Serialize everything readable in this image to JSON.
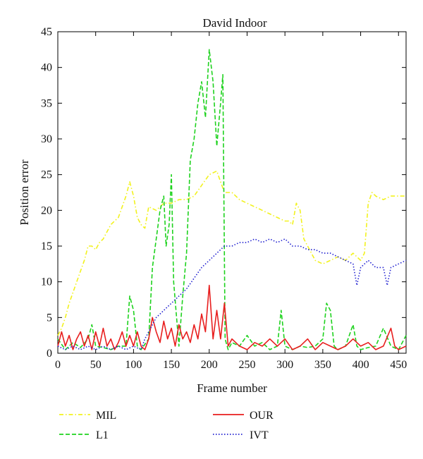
{
  "chart_data": {
    "type": "line",
    "title": "David Indoor",
    "xlabel": "Frame number",
    "ylabel": "Position error",
    "xlim": [
      0,
      460
    ],
    "ylim": [
      0,
      45
    ],
    "xticks": [
      0,
      50,
      100,
      150,
      200,
      250,
      300,
      350,
      400,
      450
    ],
    "yticks": [
      0,
      5,
      10,
      15,
      20,
      25,
      30,
      35,
      40,
      45
    ],
    "grid": false,
    "legend_position": "below-plot",
    "series": [
      {
        "name": "MIL",
        "color": "#f2f21e",
        "style": "dashdot",
        "points": [
          [
            0,
            2.5
          ],
          [
            5,
            3.5
          ],
          [
            10,
            5
          ],
          [
            15,
            7
          ],
          [
            20,
            8.5
          ],
          [
            25,
            10
          ],
          [
            30,
            11.5
          ],
          [
            35,
            13
          ],
          [
            40,
            15
          ],
          [
            45,
            15
          ],
          [
            50,
            14.5
          ],
          [
            55,
            15.5
          ],
          [
            60,
            16
          ],
          [
            65,
            17
          ],
          [
            70,
            18
          ],
          [
            75,
            18.5
          ],
          [
            80,
            19
          ],
          [
            85,
            20.5
          ],
          [
            90,
            22
          ],
          [
            95,
            24
          ],
          [
            100,
            22
          ],
          [
            105,
            19
          ],
          [
            110,
            18
          ],
          [
            115,
            17.5
          ],
          [
            120,
            20.5
          ],
          [
            130,
            20
          ],
          [
            140,
            21
          ],
          [
            150,
            21
          ],
          [
            160,
            21.5
          ],
          [
            170,
            21.5
          ],
          [
            180,
            22
          ],
          [
            190,
            23.5
          ],
          [
            200,
            25
          ],
          [
            210,
            25.5
          ],
          [
            215,
            24
          ],
          [
            220,
            22.5
          ],
          [
            230,
            22.5
          ],
          [
            240,
            21.5
          ],
          [
            250,
            21
          ],
          [
            260,
            20.5
          ],
          [
            270,
            20
          ],
          [
            280,
            19.5
          ],
          [
            290,
            19
          ],
          [
            300,
            18.5
          ],
          [
            305,
            18.5
          ],
          [
            310,
            18
          ],
          [
            315,
            21
          ],
          [
            320,
            20
          ],
          [
            325,
            16
          ],
          [
            330,
            15
          ],
          [
            335,
            14
          ],
          [
            340,
            13
          ],
          [
            350,
            12.5
          ],
          [
            360,
            13
          ],
          [
            370,
            13.5
          ],
          [
            380,
            13
          ],
          [
            390,
            14
          ],
          [
            400,
            13
          ],
          [
            405,
            14
          ],
          [
            410,
            21
          ],
          [
            415,
            22.5
          ],
          [
            420,
            22
          ],
          [
            430,
            21.5
          ],
          [
            440,
            22
          ],
          [
            450,
            22
          ],
          [
            460,
            22
          ]
        ]
      },
      {
        "name": "L1",
        "color": "#1ed21e",
        "style": "dashed",
        "points": [
          [
            0,
            2
          ],
          [
            10,
            0.5
          ],
          [
            20,
            1.5
          ],
          [
            30,
            0.8
          ],
          [
            40,
            2
          ],
          [
            45,
            4
          ],
          [
            50,
            1
          ],
          [
            60,
            0.8
          ],
          [
            70,
            0.5
          ],
          [
            80,
            1
          ],
          [
            90,
            1
          ],
          [
            95,
            8
          ],
          [
            100,
            6
          ],
          [
            105,
            1
          ],
          [
            110,
            0.5
          ],
          [
            120,
            2
          ],
          [
            125,
            12
          ],
          [
            130,
            16
          ],
          [
            135,
            20
          ],
          [
            140,
            22
          ],
          [
            143,
            15
          ],
          [
            147,
            18
          ],
          [
            150,
            25
          ],
          [
            153,
            10
          ],
          [
            160,
            1
          ],
          [
            165,
            8
          ],
          [
            170,
            14
          ],
          [
            175,
            27
          ],
          [
            180,
            30
          ],
          [
            185,
            35
          ],
          [
            190,
            38
          ],
          [
            195,
            33
          ],
          [
            200,
            42.5
          ],
          [
            205,
            38
          ],
          [
            210,
            29
          ],
          [
            215,
            35
          ],
          [
            218,
            39
          ],
          [
            221,
            2
          ],
          [
            225,
            0.5
          ],
          [
            230,
            1.5
          ],
          [
            240,
            1
          ],
          [
            250,
            2.5
          ],
          [
            260,
            1
          ],
          [
            270,
            1.5
          ],
          [
            280,
            0.5
          ],
          [
            290,
            1
          ],
          [
            295,
            6
          ],
          [
            300,
            1
          ],
          [
            310,
            0.5
          ],
          [
            320,
            1
          ],
          [
            330,
            0.8
          ],
          [
            340,
            1
          ],
          [
            350,
            2
          ],
          [
            355,
            7
          ],
          [
            360,
            6
          ],
          [
            365,
            1
          ],
          [
            370,
            0.5
          ],
          [
            380,
            1
          ],
          [
            390,
            4
          ],
          [
            395,
            1
          ],
          [
            400,
            0.5
          ],
          [
            410,
            0.8
          ],
          [
            420,
            1
          ],
          [
            430,
            3.5
          ],
          [
            440,
            1
          ],
          [
            450,
            0.5
          ],
          [
            460,
            2.5
          ]
        ]
      },
      {
        "name": "OUR",
        "color": "#e81e1e",
        "style": "solid",
        "points": [
          [
            0,
            1
          ],
          [
            5,
            3
          ],
          [
            10,
            1
          ],
          [
            15,
            2.5
          ],
          [
            20,
            0.5
          ],
          [
            25,
            2
          ],
          [
            30,
            3
          ],
          [
            35,
            1
          ],
          [
            40,
            2.5
          ],
          [
            45,
            0.5
          ],
          [
            50,
            3
          ],
          [
            55,
            1
          ],
          [
            60,
            3.5
          ],
          [
            65,
            1
          ],
          [
            70,
            2
          ],
          [
            75,
            0.5
          ],
          [
            80,
            1.5
          ],
          [
            85,
            3
          ],
          [
            90,
            1
          ],
          [
            95,
            2.5
          ],
          [
            100,
            1
          ],
          [
            105,
            3
          ],
          [
            110,
            1
          ],
          [
            115,
            0.5
          ],
          [
            120,
            2
          ],
          [
            125,
            5
          ],
          [
            130,
            3
          ],
          [
            135,
            1.5
          ],
          [
            140,
            4.5
          ],
          [
            145,
            2
          ],
          [
            150,
            3.5
          ],
          [
            155,
            1
          ],
          [
            160,
            4
          ],
          [
            165,
            2
          ],
          [
            170,
            3
          ],
          [
            175,
            1.5
          ],
          [
            180,
            4
          ],
          [
            185,
            2
          ],
          [
            190,
            5.5
          ],
          [
            195,
            3
          ],
          [
            200,
            9.5
          ],
          [
            205,
            2
          ],
          [
            210,
            6
          ],
          [
            215,
            2
          ],
          [
            220,
            7
          ],
          [
            225,
            1
          ],
          [
            230,
            2
          ],
          [
            240,
            1
          ],
          [
            250,
            0.5
          ],
          [
            260,
            1.5
          ],
          [
            270,
            1
          ],
          [
            280,
            2
          ],
          [
            290,
            1
          ],
          [
            300,
            2
          ],
          [
            310,
            0.5
          ],
          [
            320,
            1
          ],
          [
            330,
            2
          ],
          [
            340,
            0.5
          ],
          [
            350,
            1.5
          ],
          [
            360,
            1
          ],
          [
            370,
            0.5
          ],
          [
            380,
            1
          ],
          [
            390,
            2
          ],
          [
            400,
            1
          ],
          [
            410,
            1.5
          ],
          [
            420,
            0.5
          ],
          [
            430,
            1
          ],
          [
            440,
            3.5
          ],
          [
            445,
            1
          ],
          [
            450,
            0.5
          ],
          [
            460,
            1
          ]
        ]
      },
      {
        "name": "IVT",
        "color": "#2020d0",
        "style": "dotted",
        "points": [
          [
            0,
            1
          ],
          [
            10,
            0.5
          ],
          [
            20,
            1
          ],
          [
            30,
            0.5
          ],
          [
            40,
            1
          ],
          [
            50,
            0.5
          ],
          [
            60,
            1
          ],
          [
            70,
            0.5
          ],
          [
            80,
            1
          ],
          [
            90,
            0.5
          ],
          [
            100,
            1
          ],
          [
            110,
            0.5
          ],
          [
            115,
            2
          ],
          [
            120,
            3
          ],
          [
            125,
            4
          ],
          [
            130,
            5
          ],
          [
            135,
            5.5
          ],
          [
            140,
            6
          ],
          [
            145,
            6.5
          ],
          [
            150,
            7
          ],
          [
            160,
            8
          ],
          [
            170,
            9
          ],
          [
            180,
            10.5
          ],
          [
            190,
            12
          ],
          [
            200,
            13
          ],
          [
            210,
            14
          ],
          [
            220,
            15
          ],
          [
            225,
            15
          ],
          [
            230,
            15
          ],
          [
            240,
            15.5
          ],
          [
            250,
            15.5
          ],
          [
            260,
            16
          ],
          [
            270,
            15.5
          ],
          [
            280,
            16
          ],
          [
            290,
            15.5
          ],
          [
            300,
            16
          ],
          [
            310,
            15
          ],
          [
            320,
            15
          ],
          [
            330,
            14.5
          ],
          [
            340,
            14.5
          ],
          [
            350,
            14
          ],
          [
            360,
            14
          ],
          [
            370,
            13.5
          ],
          [
            380,
            13
          ],
          [
            390,
            12.5
          ],
          [
            395,
            9.5
          ],
          [
            400,
            12
          ],
          [
            410,
            13
          ],
          [
            420,
            12
          ],
          [
            430,
            12
          ],
          [
            435,
            9.5
          ],
          [
            440,
            12
          ],
          [
            450,
            12.5
          ],
          [
            460,
            13
          ]
        ]
      }
    ]
  }
}
